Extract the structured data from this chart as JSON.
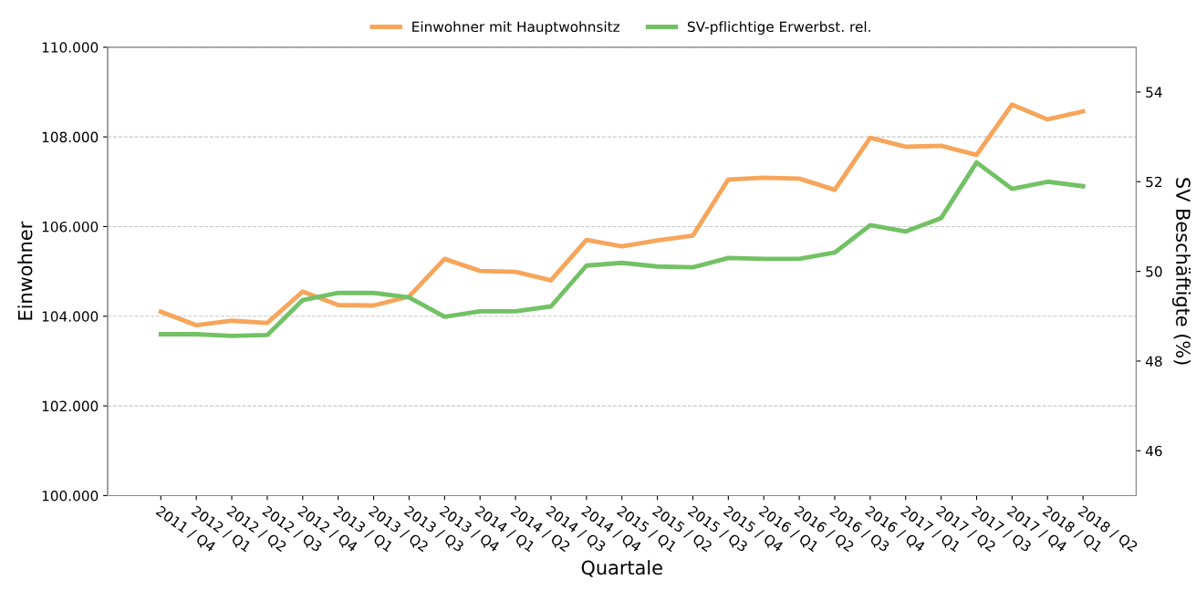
{
  "chart_data": {
    "type": "line",
    "xlabel": "Quartale",
    "ylabel": "Einwohner",
    "y2label": "SV Beschäftigte (%)",
    "categories": [
      "2011 / Q4",
      "2012 / Q1",
      "2012 / Q2",
      "2012 / Q3",
      "2012 / Q4",
      "2013 / Q1",
      "2013 / Q2",
      "2013 / Q3",
      "2013 / Q4",
      "2014 / Q1",
      "2014 / Q2",
      "2014 / Q3",
      "2014 / Q4",
      "2015 / Q1",
      "2015 / Q2",
      "2015 / Q3",
      "2015 / Q4",
      "2016 / Q1",
      "2016 / Q2",
      "2016 / Q3",
      "2016 / Q4",
      "2017 / Q1",
      "2017 / Q2",
      "2017 / Q3",
      "2017 / Q4",
      "2018 / Q1",
      "2018 / Q2"
    ],
    "series": [
      {
        "name": "Einwohner mit Hauptwohnsitz",
        "color": "#f6a55a",
        "values": [
          104100,
          103800,
          103900,
          103850,
          104550,
          104250,
          104240,
          104440,
          105280,
          105010,
          104990,
          104800,
          105700,
          105560,
          105690,
          105800,
          107050,
          107090,
          107070,
          106820,
          107980,
          107780,
          107800,
          107600,
          108720,
          108390,
          108570
        ]
      },
      {
        "name": "SV-pflichtige Erwerbst. rel.",
        "color": "#72c164",
        "axis": "y2",
        "values": [
          48.6,
          48.6,
          48.56,
          48.58,
          49.36,
          49.52,
          49.52,
          49.42,
          48.99,
          49.11,
          49.11,
          49.22,
          50.13,
          50.19,
          50.11,
          50.09,
          50.3,
          50.28,
          50.28,
          50.42,
          51.03,
          50.89,
          51.19,
          52.43,
          51.84,
          52.0,
          51.9
        ]
      }
    ],
    "ylim": [
      100000,
      110000
    ],
    "yticks": [
      {
        "value": 100000,
        "label": "100.000"
      },
      {
        "value": 102000,
        "label": "102.000"
      },
      {
        "value": 104000,
        "label": "104.000"
      },
      {
        "value": 106000,
        "label": "106.000"
      },
      {
        "value": 108000,
        "label": "108.000"
      },
      {
        "value": 110000,
        "label": "110.000"
      }
    ],
    "y2lim": [
      45,
      55
    ],
    "y2ticks": [
      46,
      48,
      50,
      52,
      54
    ],
    "grid": "y",
    "legend": "top",
    "line_style": "solid",
    "marker": "none"
  }
}
